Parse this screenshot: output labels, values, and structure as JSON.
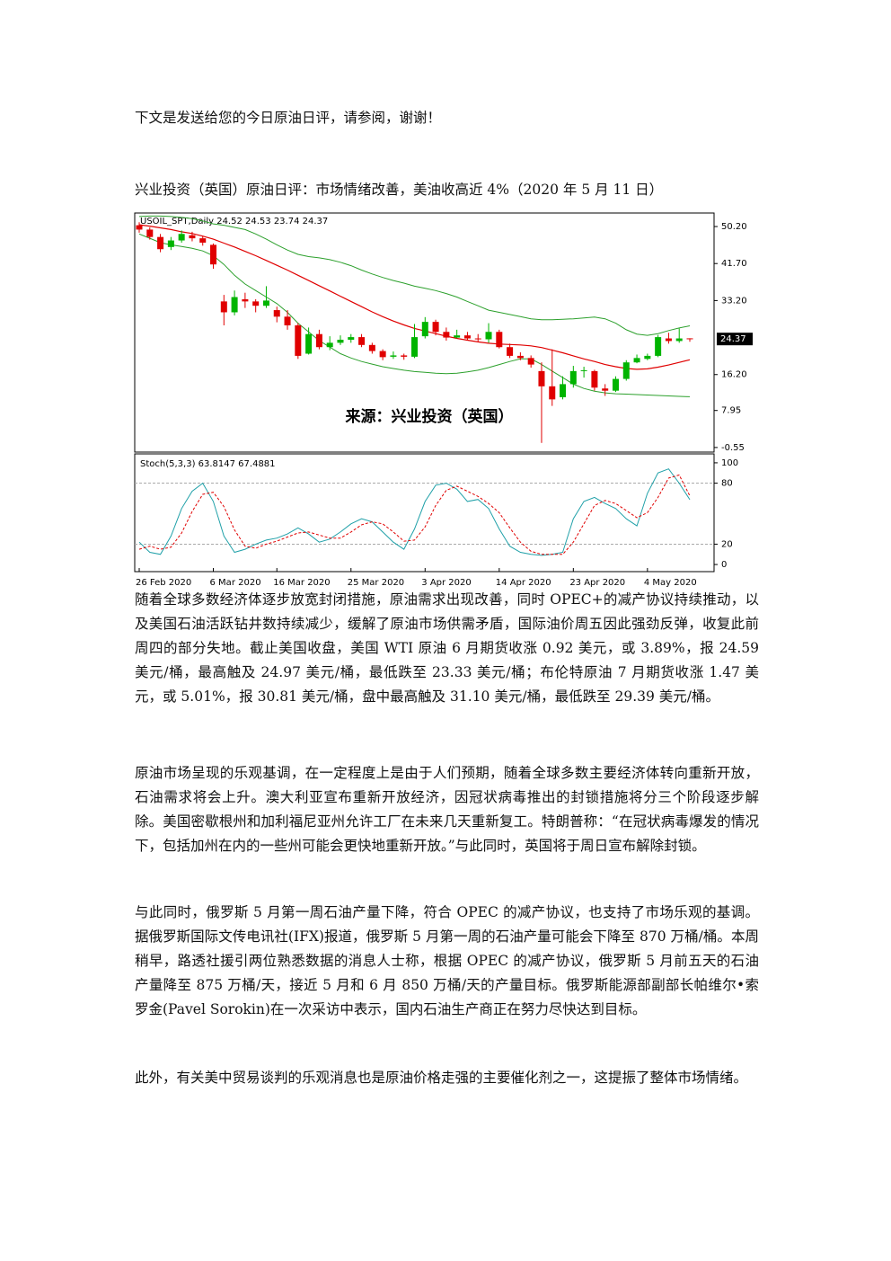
{
  "intro": "下文是发送给您的今日原油日评，请参阅，谢谢！",
  "heading": "兴业投资（英国）原油日评：市场情绪改善，美油收高近 4%（2020 年 5 月 11 日）",
  "chart_data": {
    "type": "candlestick",
    "header": "USOIL_SPT,Daily  24.52 24.53 23.74 24.37",
    "watermark": "来源：兴业投资（英国）",
    "last_price": 24.37,
    "up_color": "#00b400",
    "down_color": "#e00000",
    "categories": [
      "26 Feb 2020",
      null,
      null,
      null,
      null,
      null,
      null,
      "6 Mar 2020",
      null,
      null,
      null,
      null,
      null,
      "16 Mar 2020",
      null,
      null,
      null,
      null,
      null,
      null,
      "25 Mar 2020",
      null,
      null,
      null,
      null,
      null,
      null,
      "3 Apr 2020",
      null,
      null,
      null,
      null,
      null,
      null,
      "14 Apr 2020",
      null,
      null,
      null,
      null,
      null,
      null,
      "23 Apr 2020",
      null,
      null,
      null,
      null,
      null,
      null,
      "4 May 2020",
      null,
      null,
      null,
      null
    ],
    "open": [
      50.5,
      49.5,
      47.8,
      45.5,
      47,
      48.2,
      47.5,
      46,
      33,
      30.5,
      33.5,
      33,
      32,
      31,
      29.5,
      27.5,
      21,
      25.5,
      22.5,
      23.5,
      24.2,
      24.8,
      23,
      21.6,
      20.3,
      20.6,
      20.3,
      25,
      28.3,
      26,
      24.7,
      25.2,
      24.5,
      24.3,
      26,
      22.5,
      20.5,
      20,
      17,
      13.5,
      11,
      14,
      17,
      17,
      13,
      12.5,
      15.2,
      19,
      19.8,
      20.5,
      24.5,
      23.9,
      24.52
    ],
    "high": [
      51.2,
      50,
      48.5,
      47.8,
      49.3,
      49,
      48,
      46.3,
      34.5,
      35.5,
      35,
      33.5,
      36.5,
      31.8,
      31,
      28,
      27,
      26.5,
      25,
      25.2,
      25.5,
      25.5,
      23.5,
      22,
      21.5,
      21,
      27.8,
      29.4,
      28.8,
      27,
      26.5,
      26,
      25.5,
      28,
      26.5,
      23.3,
      21.3,
      20.6,
      19,
      22,
      15.8,
      18.2,
      18,
      17.3,
      14,
      15.8,
      19.5,
      20.8,
      21,
      25.3,
      25.8,
      26.8,
      24.53
    ],
    "low": [
      48.8,
      47.2,
      44.3,
      44.8,
      46.5,
      46.8,
      45.8,
      40.5,
      27.5,
      29.8,
      31.5,
      30.5,
      31.5,
      28.2,
      26.5,
      19.8,
      20.8,
      22,
      21.8,
      23,
      23.5,
      22.5,
      21,
      19.5,
      19.8,
      19.6,
      20,
      24.5,
      25.2,
      24,
      24.5,
      24,
      23.8,
      23.5,
      22.2,
      20,
      19.5,
      17.8,
      0.5,
      9,
      10.5,
      13.2,
      15.5,
      12.5,
      11.3,
      12.2,
      14.8,
      18.8,
      19.5,
      20.2,
      23.3,
      23.5,
      23.74
    ],
    "close": [
      49.5,
      47.8,
      45,
      47,
      48.5,
      47.5,
      46.5,
      41.5,
      30.5,
      34,
      33,
      32,
      33.2,
      29.5,
      27.5,
      20.5,
      25.5,
      22.5,
      23.5,
      24.2,
      24.8,
      23,
      21.6,
      20.2,
      20.6,
      20.3,
      24.8,
      28.3,
      26,
      24.7,
      25.2,
      24.5,
      24.3,
      26,
      22.5,
      20.5,
      20,
      18.5,
      13.5,
      10.5,
      14,
      17,
      17.2,
      13.2,
      12.5,
      15.2,
      19,
      20,
      20.5,
      24.8,
      23.9,
      24.5,
      24.37
    ],
    "bands": {
      "band_color": "#2ca02c",
      "middle_color": "#e00000",
      "upper": [
        52.5,
        52.6,
        52.6,
        52.5,
        52.3,
        52,
        51.5,
        50.8,
        50.5,
        50,
        49.5,
        48.5,
        47.3,
        46,
        44.8,
        43.8,
        43.3,
        43,
        42.6,
        42,
        41.2,
        40.2,
        39.3,
        38.5,
        37.8,
        37.2,
        36.5,
        36,
        35.5,
        34.8,
        34,
        33,
        32,
        31,
        30.5,
        30,
        29.5,
        29,
        28.8,
        28.8,
        28.9,
        29,
        29.2,
        29.4,
        29,
        28,
        26.5,
        25.5,
        25.2,
        25.6,
        26.3,
        26.9,
        27.4
      ],
      "middle": [
        50.6,
        50.3,
        49.9,
        49.5,
        49,
        48.6,
        48,
        47.3,
        46.4,
        45.5,
        44.5,
        43.5,
        42.4,
        41.3,
        40.2,
        39,
        37.8,
        36.6,
        35.4,
        34.2,
        33,
        31.8,
        30.6,
        29.5,
        28.5,
        27.6,
        26.8,
        26.2,
        25.6,
        25,
        24.5,
        24.1,
        23.7,
        23.4,
        23.2,
        23.1,
        23,
        22.8,
        22.4,
        21.8,
        21.2,
        20.5,
        19.8,
        19.2,
        18.5,
        18,
        17.6,
        17.4,
        17.5,
        17.9,
        18.4,
        19,
        19.6
      ],
      "lower": [
        48.5,
        47.5,
        46.5,
        46,
        45.6,
        45.2,
        44.6,
        43.5,
        41.5,
        39,
        37,
        35.5,
        34,
        32.5,
        30.5,
        28,
        26,
        24,
        22.5,
        21,
        20,
        19.2,
        18.6,
        18,
        17.6,
        17.2,
        16.9,
        16.7,
        16.5,
        16.4,
        16.5,
        16.8,
        17.2,
        17.8,
        18.5,
        19.2,
        19.8,
        19.8,
        18.5,
        17,
        15.5,
        14,
        13,
        12.4,
        12,
        11.8,
        11.7,
        11.6,
        11.5,
        11.4,
        11.3,
        11.2,
        11.1
      ]
    },
    "ylim": [
      -1.4,
      53.1
    ],
    "yticks": [
      {
        "value": 50.2,
        "label": "50.20"
      },
      {
        "value": 41.7,
        "label": "41.70"
      },
      {
        "value": 33.2,
        "label": "33.20"
      },
      {
        "value": 16.2,
        "label": "16.20"
      },
      7.95,
      -0.55
    ],
    "stochastic": {
      "title": "Stoch(5,3,3) 63.8147 67.4881",
      "k_color": "#1fa0a8",
      "d_color": "#e00000",
      "k": [
        22,
        12,
        10,
        28,
        55,
        72,
        80,
        62,
        28,
        12,
        15,
        20,
        24,
        26,
        30,
        36,
        30,
        22,
        25,
        32,
        40,
        45,
        42,
        32,
        22,
        15,
        35,
        62,
        78,
        80,
        74,
        62,
        64,
        55,
        35,
        18,
        12,
        10,
        9,
        10,
        12,
        45,
        62,
        66,
        60,
        55,
        45,
        38,
        70,
        90,
        94,
        80,
        63.8147
      ],
      "d": [
        15,
        18,
        15,
        17,
        31,
        52,
        69,
        71,
        57,
        34,
        18,
        16,
        20,
        23,
        27,
        31,
        32,
        29,
        26,
        26,
        32,
        39,
        42,
        40,
        32,
        23,
        24,
        37,
        58,
        73,
        77,
        72,
        67,
        60,
        51,
        36,
        22,
        13,
        10,
        10,
        10,
        22,
        40,
        58,
        63,
        60,
        53,
        46,
        51,
        66,
        85,
        88,
        67.4881
      ],
      "ylim": [
        -7,
        107
      ],
      "yticks": [
        0,
        20,
        80,
        100
      ]
    }
  },
  "paragraphs": [
    "随着全球多数经济体逐步放宽封闭措施，原油需求出现改善，同时 OPEC+的减产协议持续推动，以及美国石油活跃钻井数持续减少，缓解了原油市场供需矛盾，国际油价周五因此强劲反弹，收复此前周四的部分失地。截止美国收盘，美国 WTI 原油 6 月期货收涨 0.92 美元，或 3.89%，报 24.59 美元/桶，最高触及 24.97 美元/桶，最低跌至 23.33 美元/桶；布伦特原油 7 月期货收涨 1.47 美元，或 5.01%，报 30.81 美元/桶，盘中最高触及 31.10 美元/桶，最低跌至 29.39 美元/桶。",
    "原油市场呈现的乐观基调，在一定程度上是由于人们预期，随着全球多数主要经济体转向重新开放，石油需求将会上升。澳大利亚宣布重新开放经济，因冠状病毒推出的封锁措施将分三个阶段逐步解除。美国密歇根州和加利福尼亚州允许工厂在未来几天重新复工。特朗普称：“在冠状病毒爆发的情况下，包括加州在内的一些州可能会更快地重新开放。”与此同时，英国将于周日宣布解除封锁。",
    "与此同时，俄罗斯 5 月第一周石油产量下降，符合 OPEC 的减产协议，也支持了市场乐观的基调。据俄罗斯国际文传电讯社(IFX)报道，俄罗斯 5 月第一周的石油产量可能会下降至 870 万桶/桶。本周稍早，路透社援引两位熟悉数据的消息人士称，根据 OPEC 的减产协议，俄罗斯 5 月前五天的石油产量降至 875 万桶/天，接近 5 月和 6 月 850 万桶/天的产量目标。俄罗斯能源部副部长帕维尔•索罗金(Pavel Sorokin)在一次采访中表示，国内石油生产商正在努力尽快达到目标。",
    "此外，有关美中贸易谈判的乐观消息也是原油价格走强的主要催化剂之一，这提振了整体市场情绪。"
  ]
}
